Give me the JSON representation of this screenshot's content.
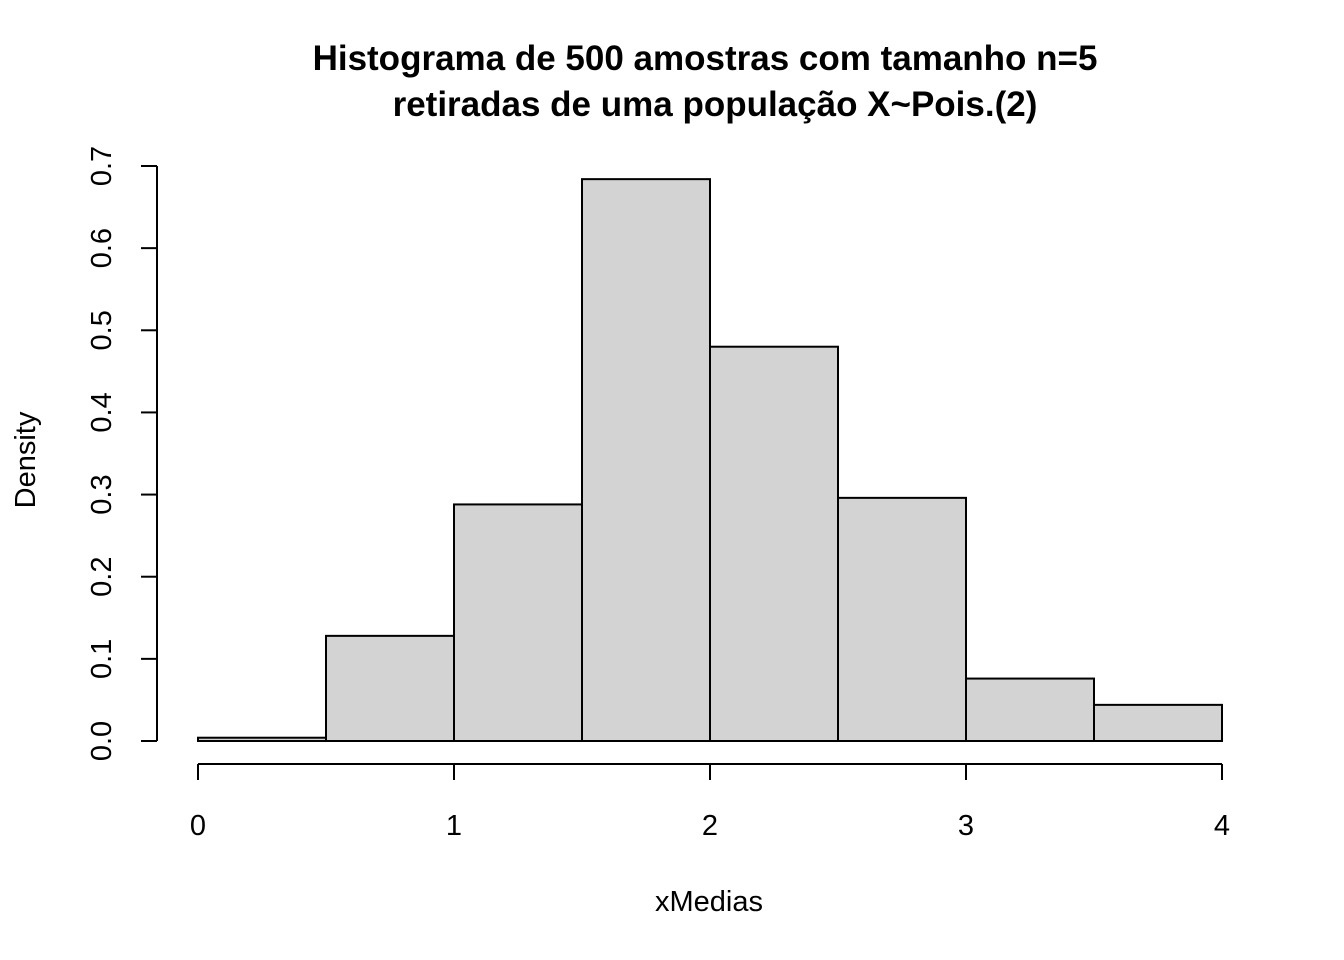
{
  "chart_data": {
    "type": "bar",
    "title": [
      "Histograma de 500 amostras com tamanho n=5",
      "retiradas de uma população X~Pois.(2)"
    ],
    "xlabel": "xMedias",
    "ylabel": "Density",
    "bins": [
      {
        "from": 0.0,
        "to": 0.5,
        "density": 0.004
      },
      {
        "from": 0.5,
        "to": 1.0,
        "density": 0.128
      },
      {
        "from": 1.0,
        "to": 1.5,
        "density": 0.288
      },
      {
        "from": 1.5,
        "to": 2.0,
        "density": 0.684
      },
      {
        "from": 2.0,
        "to": 2.5,
        "density": 0.48
      },
      {
        "from": 2.5,
        "to": 3.0,
        "density": 0.296
      },
      {
        "from": 3.0,
        "to": 3.5,
        "density": 0.076
      },
      {
        "from": 3.5,
        "to": 4.0,
        "density": 0.044
      }
    ],
    "xlim": [
      0,
      4
    ],
    "ylim": [
      0,
      0.7
    ],
    "x_ticks": [
      0,
      1,
      2,
      3,
      4
    ],
    "x_tick_labels": [
      "0",
      "1",
      "2",
      "3",
      "4"
    ],
    "y_ticks": [
      0,
      0.1,
      0.2,
      0.3,
      0.4,
      0.5,
      0.6,
      0.7
    ],
    "y_tick_labels": [
      "0.0",
      "0.1",
      "0.2",
      "0.3",
      "0.4",
      "0.5",
      "0.6",
      "0.7"
    ],
    "bar_fill": "#d3d3d3",
    "bar_stroke": "#000000",
    "grid": false,
    "legend": "none"
  }
}
